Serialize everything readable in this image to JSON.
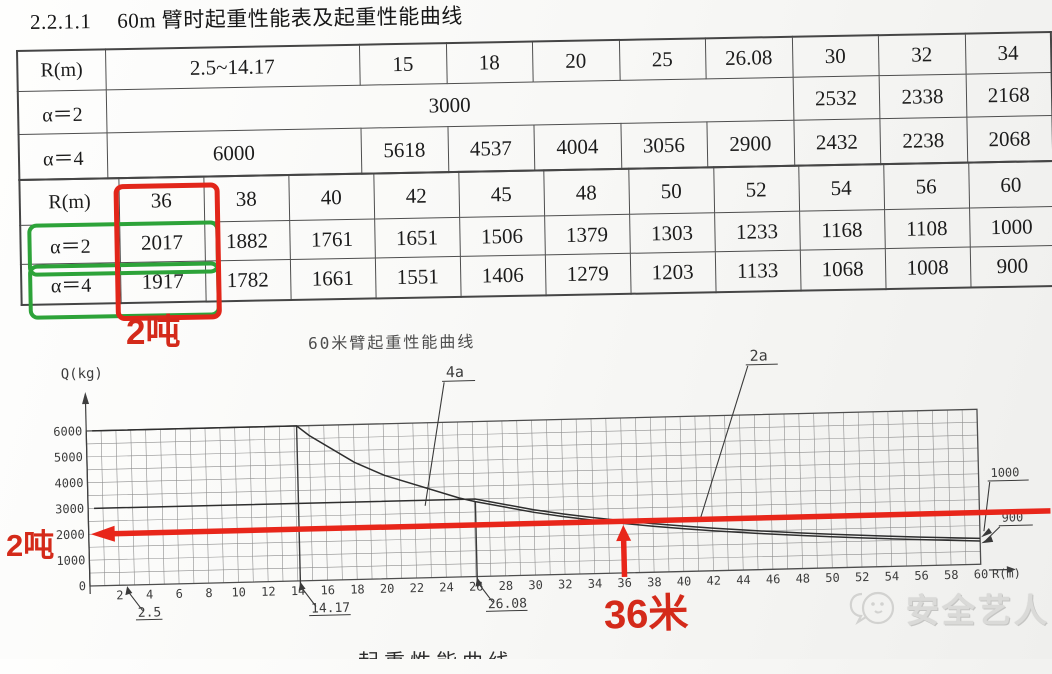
{
  "title": {
    "number": "2.2.1.1",
    "text": "60m 臂时起重性能表及起重性能曲线"
  },
  "table": {
    "upper": {
      "rows": [
        {
          "label": "R(m)",
          "cells": [
            {
              "t": "2.5~14.17"
            },
            "15",
            "18",
            "20",
            "25",
            "26.08",
            "30",
            "32",
            "34"
          ]
        },
        {
          "label": "α＝2",
          "cells": [
            {
              "t": "3000",
              "span": 6
            },
            "2532",
            "2338",
            "2168"
          ]
        },
        {
          "label": "α＝4",
          "cells": [
            {
              "t": "6000"
            },
            "5618",
            "4537",
            "4004",
            "3056",
            "2900",
            "2432",
            "2238",
            "2068"
          ]
        }
      ]
    },
    "lower": {
      "rows": [
        {
          "label": "R(m)",
          "cells": [
            "36",
            "38",
            "40",
            "42",
            "45",
            "48",
            "50",
            "52",
            "54",
            "56",
            "60"
          ]
        },
        {
          "label": "α＝2",
          "cells": [
            "2017",
            "1882",
            "1761",
            "1651",
            "1506",
            "1379",
            "1303",
            "1233",
            "1168",
            "1108",
            "1000"
          ]
        },
        {
          "label": "α＝4",
          "cells": [
            "1917",
            "1782",
            "1661",
            "1551",
            "1406",
            "1279",
            "1203",
            "1133",
            "1068",
            "1008",
            "900"
          ]
        }
      ]
    }
  },
  "annotations": {
    "table_note": "2吨",
    "left_note": "2吨",
    "radius_note": "36米",
    "red": "#d42a1a",
    "green": "#2da339"
  },
  "chart_data": {
    "type": "line",
    "title": "60米臂起重性能曲线",
    "ylabel": "Q(kg)",
    "xlabel": "R(m)",
    "xlim": [
      0,
      60
    ],
    "ylim": [
      0,
      6000
    ],
    "x_tick_step": 2,
    "y_ticks": [
      6000,
      5000,
      4000,
      3000,
      2000,
      1000,
      0
    ],
    "grid": {
      "x_step": 1,
      "y_step": 500,
      "on": true
    },
    "callouts": [
      {
        "label": "2.5",
        "x": 2.5,
        "line_from": null
      },
      {
        "label": "14.17",
        "x": 14.17,
        "line_from": 6000
      },
      {
        "label": "26.08",
        "x": 26.08,
        "line_from": 2900
      }
    ],
    "series": [
      {
        "name": "2a",
        "x": [
          0.4,
          26.08,
          30,
          32,
          34,
          36,
          38,
          40,
          42,
          45,
          48,
          50,
          52,
          54,
          56,
          60
        ],
        "y": [
          3000,
          3000,
          2532,
          2338,
          2168,
          2017,
          1882,
          1761,
          1651,
          1506,
          1379,
          1303,
          1233,
          1168,
          1108,
          1000
        ],
        "end_label": "1000"
      },
      {
        "name": "4a",
        "x": [
          0.4,
          14.17,
          15,
          18,
          20,
          25,
          26.08,
          30,
          32,
          34,
          36,
          38,
          40,
          42,
          45,
          48,
          50,
          52,
          54,
          56,
          60
        ],
        "y": [
          6000,
          6000,
          5618,
          4537,
          4004,
          3056,
          2900,
          2432,
          2238,
          2068,
          1917,
          1782,
          1661,
          1551,
          1406,
          1279,
          1203,
          1133,
          1068,
          1008,
          900
        ],
        "end_label": "900"
      }
    ],
    "highlight": {
      "x": 36,
      "y": 2000
    }
  },
  "watermark": {
    "text": "安全艺人"
  },
  "footer_partial": "起重性能曲线"
}
